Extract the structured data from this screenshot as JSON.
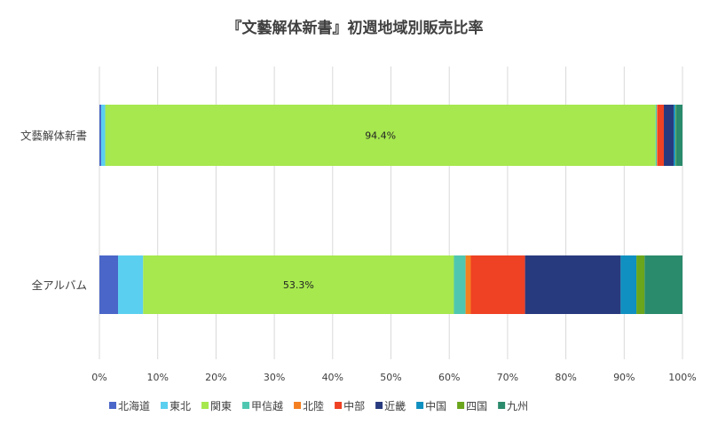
{
  "chart_data": {
    "type": "bar",
    "orientation": "horizontal",
    "stacked": "percent",
    "title": "『文藝解体新書』初週地域別販売比率",
    "categories": [
      "文藝解体新書",
      "全アルバム"
    ],
    "xlim": [
      0,
      100
    ],
    "xticks": [
      "0%",
      "10%",
      "20%",
      "30%",
      "40%",
      "50%",
      "60%",
      "70%",
      "80%",
      "90%",
      "100%"
    ],
    "grid": true,
    "legend_position": "bottom",
    "series": [
      {
        "name": "北海道",
        "color": "#4a66c8",
        "values": [
          0.3,
          3.2
        ]
      },
      {
        "name": "東北",
        "color": "#5bcff0",
        "values": [
          0.7,
          4.3
        ]
      },
      {
        "name": "関東",
        "color": "#a6e84e",
        "values": [
          94.4,
          53.3
        ],
        "labels": [
          "94.4%",
          "53.3%"
        ]
      },
      {
        "name": "甲信越",
        "color": "#4fc7b0",
        "values": [
          0.2,
          2.0
        ]
      },
      {
        "name": "北陸",
        "color": "#f47f20",
        "values": [
          0.1,
          0.9
        ]
      },
      {
        "name": "中部",
        "color": "#ef4123",
        "values": [
          1.1,
          9.3
        ]
      },
      {
        "name": "近畿",
        "color": "#283a7e",
        "values": [
          1.7,
          16.4
        ]
      },
      {
        "name": "中国",
        "color": "#1090c0",
        "values": [
          0.3,
          2.7
        ]
      },
      {
        "name": "四国",
        "color": "#6aa51c",
        "values": [
          0.1,
          1.4
        ]
      },
      {
        "name": "九州",
        "color": "#2a8a6c",
        "values": [
          1.1,
          6.5
        ]
      }
    ]
  }
}
